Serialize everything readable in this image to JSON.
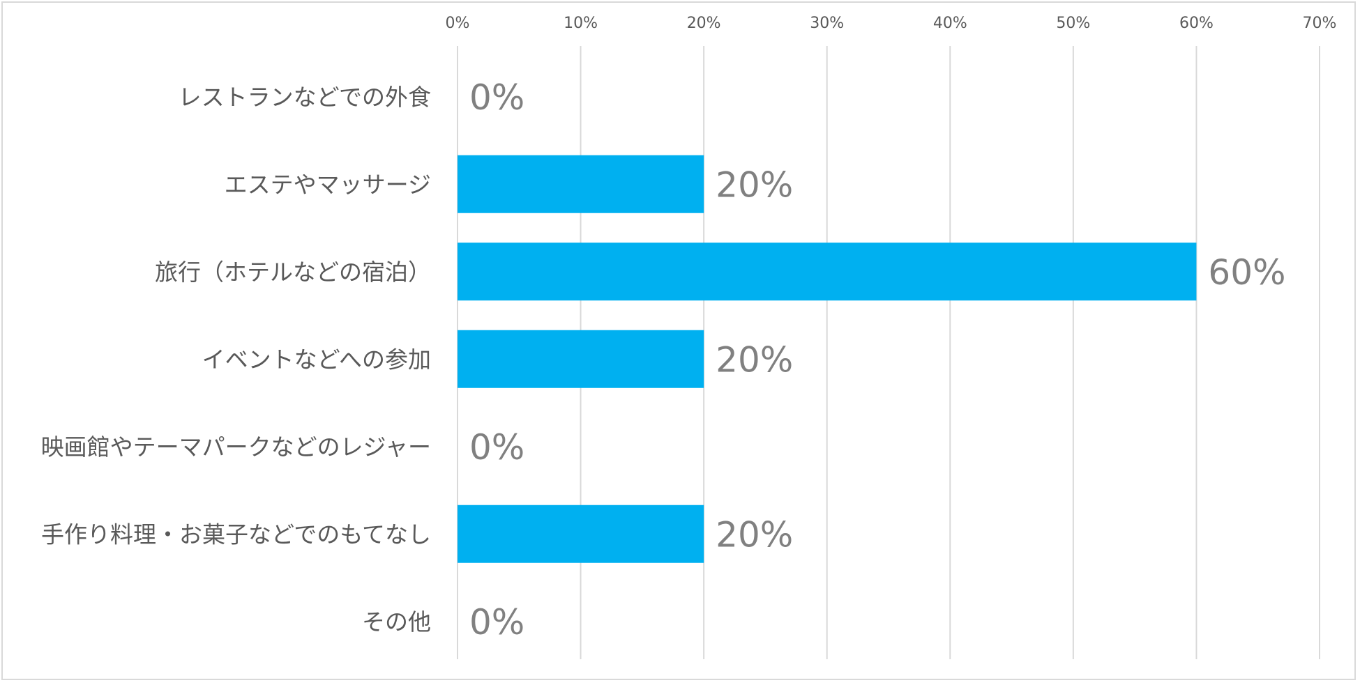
{
  "chart_data": {
    "type": "bar",
    "orientation": "horizontal",
    "categories": [
      "レストランなどでの外食",
      "エステやマッサージ",
      "旅行（ホテルなどの宿泊）",
      "イベントなどへの参加",
      "映画館やテーマパークなどのレジャー",
      "手作り料理・お菓子などでのもてなし",
      "その他"
    ],
    "values": [
      0,
      20,
      60,
      20,
      0,
      20,
      0
    ],
    "data_labels": [
      "0%",
      "20%",
      "60%",
      "20%",
      "0%",
      "20%",
      "0%"
    ],
    "x_ticks": [
      "0%",
      "10%",
      "20%",
      "30%",
      "40%",
      "50%",
      "60%",
      "70%"
    ],
    "xlim": [
      0,
      70
    ],
    "x_axis_position": "top",
    "grid": true,
    "bar_color": "#00B0F0",
    "title": "",
    "xlabel": "",
    "ylabel": ""
  }
}
